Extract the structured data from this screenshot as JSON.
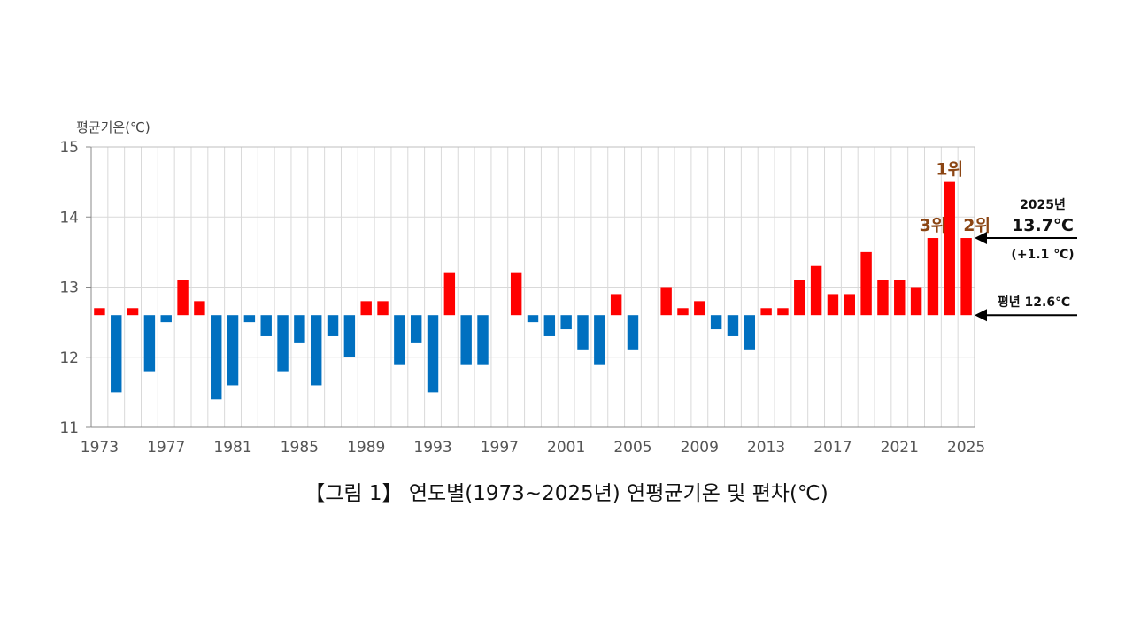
{
  "chart_data": {
    "type": "bar",
    "ylabel": "평균기온(℃)",
    "ylim": [
      11,
      15
    ],
    "yticks": [
      "11",
      "12",
      "13",
      "14",
      "15"
    ],
    "baseline": 12.6,
    "grid": true,
    "colors": {
      "above": "#ff0000",
      "below": "#0070c0",
      "rank": "#8b4513"
    },
    "xtick_labels": [
      "1973",
      "1977",
      "1981",
      "1985",
      "1989",
      "1993",
      "1997",
      "2001",
      "2005",
      "2009",
      "2013",
      "2017",
      "2021",
      "2025"
    ],
    "categories": [
      1973,
      1974,
      1975,
      1976,
      1977,
      1978,
      1979,
      1980,
      1981,
      1982,
      1983,
      1984,
      1985,
      1986,
      1987,
      1988,
      1989,
      1990,
      1991,
      1992,
      1993,
      1994,
      1995,
      1996,
      1997,
      1998,
      1999,
      2000,
      2001,
      2002,
      2003,
      2004,
      2005,
      2006,
      2007,
      2008,
      2009,
      2010,
      2011,
      2012,
      2013,
      2014,
      2015,
      2016,
      2017,
      2018,
      2019,
      2020,
      2021,
      2022,
      2023,
      2024,
      2025
    ],
    "values": [
      12.7,
      11.5,
      12.7,
      11.8,
      12.5,
      13.1,
      12.8,
      11.4,
      11.6,
      12.5,
      12.3,
      11.8,
      12.2,
      11.6,
      12.3,
      12.0,
      12.8,
      12.8,
      11.9,
      12.2,
      11.5,
      13.2,
      11.9,
      11.9,
      12.6,
      13.2,
      12.5,
      12.3,
      12.4,
      12.1,
      11.9,
      12.9,
      12.1,
      12.6,
      13.0,
      12.7,
      12.8,
      12.4,
      12.3,
      12.1,
      12.7,
      12.7,
      13.1,
      13.3,
      12.9,
      12.9,
      13.5,
      13.1,
      13.1,
      13.0,
      13.7,
      14.5,
      13.7
    ],
    "rank_labels": [
      {
        "year": 2024,
        "text": "1위"
      },
      {
        "year": 2025,
        "text": "2위"
      },
      {
        "year": 2023,
        "text": "3위"
      }
    ],
    "annotations": {
      "current_year": "2025년",
      "current_value": "13.7℃",
      "current_anomaly": "(+1.1 ℃)",
      "normal": "평년 12.6℃"
    }
  },
  "caption": "【그림 1】 연도별(1973~2025년) 연평균기온 및 편차(℃)"
}
